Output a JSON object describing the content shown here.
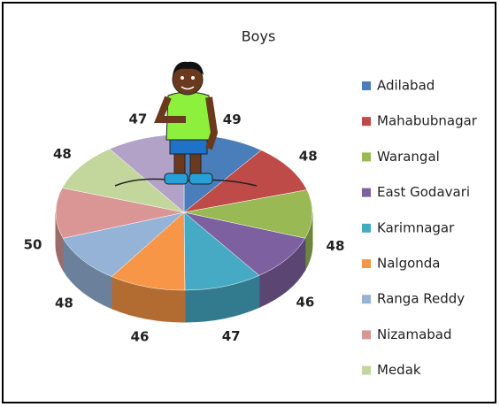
{
  "chart_data": {
    "type": "pie3d",
    "title": "Boys",
    "categories": [
      "Adilabad",
      "Mahabubnagar",
      "Warangal",
      "East Godavari",
      "Karimnagar",
      "Nalgonda",
      "Ranga Reddy",
      "Nizamabad",
      "Medak",
      null
    ],
    "values": [
      49,
      48,
      48,
      46,
      47,
      46,
      48,
      50,
      48,
      47
    ],
    "colors": [
      "#4a7ebb",
      "#be4b48",
      "#98b954",
      "#7d60a0",
      "#46aac5",
      "#f79646",
      "#95b3d7",
      "#d99694",
      "#c3d69b",
      "#b3a2c7"
    ],
    "legend": "right"
  }
}
